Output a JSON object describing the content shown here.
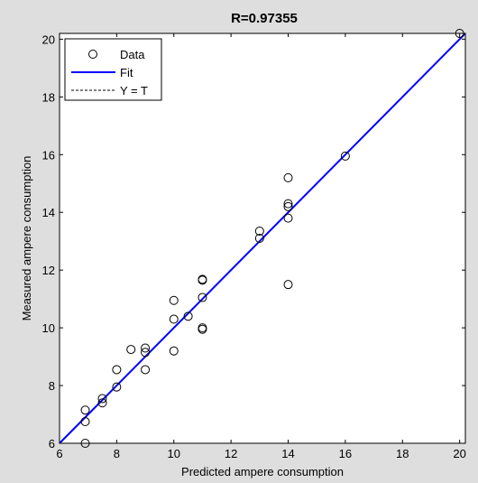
{
  "chart_data": {
    "type": "scatter",
    "title": "R=0.97355",
    "xlabel": "Predicted ampere consumption",
    "ylabel": "Measured ampere consumption",
    "xlim": [
      6,
      20.2
    ],
    "ylim": [
      6,
      20.2
    ],
    "xticks": [
      6,
      8,
      10,
      12,
      14,
      16,
      18,
      20
    ],
    "yticks": [
      6,
      8,
      10,
      12,
      14,
      16,
      18,
      20
    ],
    "grid": false,
    "legend_placement": "top-left",
    "legend": [
      "Data",
      "Fit",
      "Y = T"
    ],
    "series": [
      {
        "name": "Data",
        "marker": "open-circle",
        "color": "#000000",
        "points": [
          [
            6.9,
            6.0
          ],
          [
            6.9,
            6.75
          ],
          [
            6.9,
            7.15
          ],
          [
            7.5,
            7.4
          ],
          [
            7.5,
            7.55
          ],
          [
            8.0,
            7.95
          ],
          [
            8.0,
            8.55
          ],
          [
            8.5,
            9.25
          ],
          [
            9.0,
            8.55
          ],
          [
            9.0,
            9.15
          ],
          [
            9.0,
            9.3
          ],
          [
            10.0,
            9.2
          ],
          [
            10.0,
            10.3
          ],
          [
            10.0,
            10.95
          ],
          [
            10.5,
            10.4
          ],
          [
            11.0,
            9.95
          ],
          [
            11.0,
            10.0
          ],
          [
            11.0,
            11.05
          ],
          [
            11.0,
            11.65
          ],
          [
            11.0,
            11.68
          ],
          [
            13.0,
            13.1
          ],
          [
            13.0,
            13.35
          ],
          [
            14.0,
            11.5
          ],
          [
            14.0,
            13.8
          ],
          [
            14.0,
            14.2
          ],
          [
            14.0,
            14.3
          ],
          [
            14.0,
            15.2
          ],
          [
            16.0,
            15.95
          ],
          [
            20.0,
            20.2
          ]
        ]
      },
      {
        "name": "Fit",
        "type": "line",
        "color": "#0000ff",
        "x": [
          6,
          20.2
        ],
        "y": [
          6,
          20.2
        ]
      },
      {
        "name": "Y = T",
        "type": "line",
        "style": "dashed",
        "color": "#000000",
        "x": [
          6,
          20.2
        ],
        "y": [
          6,
          20.2
        ]
      }
    ]
  }
}
